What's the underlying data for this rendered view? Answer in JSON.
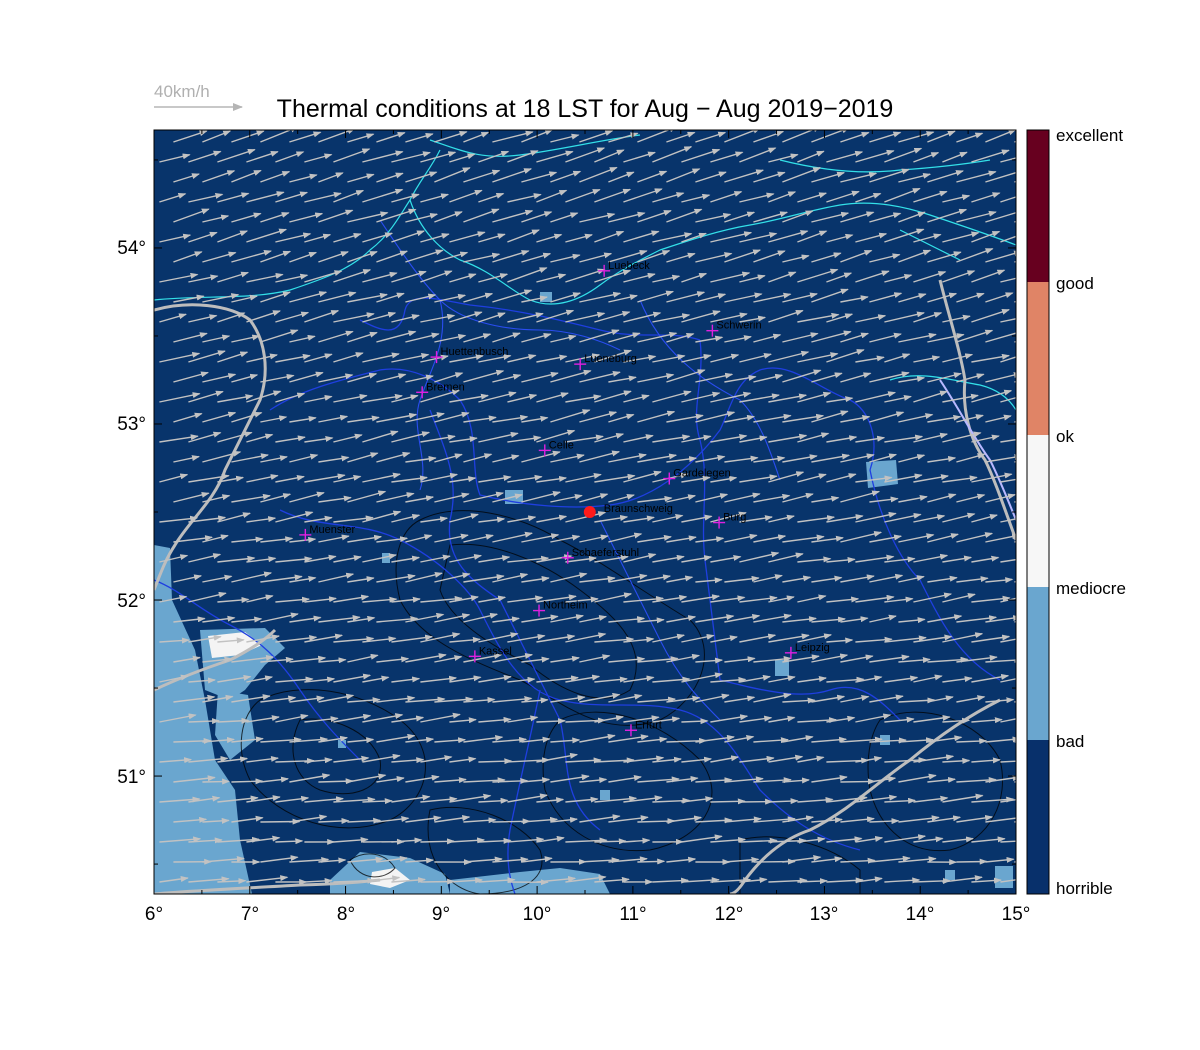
{
  "title": "Thermal conditions at 18 LST for Aug − Aug  2019−2019",
  "wind_reference": {
    "label": "40km/h"
  },
  "lon_ticks": [
    "6°",
    "7°",
    "8°",
    "9°",
    "10°",
    "11°",
    "12°",
    "13°",
    "14°",
    "15°"
  ],
  "lat_ticks": [
    "51°",
    "52°",
    "53°",
    "54°"
  ],
  "colorbar": {
    "labels": [
      "excellent",
      "good",
      "ok",
      "mediocre",
      "bad",
      "horrible"
    ],
    "colors": [
      "#67001f",
      "#e08466",
      "#f7f7f7",
      "#f2f2f2",
      "#6aa6cf",
      "#08306b"
    ]
  },
  "map": {
    "background_color": "#08346b",
    "lon_range": [
      6,
      15
    ],
    "lat_range": [
      50.33,
      54.67
    ],
    "cities": [
      {
        "name": "Luebeck",
        "lon": 10.7,
        "lat": 53.87
      },
      {
        "name": "Schwerin",
        "lon": 11.83,
        "lat": 53.53
      },
      {
        "name": "Huettenbusch",
        "lon": 8.95,
        "lat": 53.38
      },
      {
        "name": "Lueneburg",
        "lon": 10.45,
        "lat": 53.34
      },
      {
        "name": "Bremen",
        "lon": 8.8,
        "lat": 53.18
      },
      {
        "name": "Celle",
        "lon": 10.08,
        "lat": 52.85
      },
      {
        "name": "Gardelegen",
        "lon": 11.38,
        "lat": 52.69
      },
      {
        "name": "Burg",
        "lon": 11.9,
        "lat": 52.44
      },
      {
        "name": "Muenster",
        "lon": 7.58,
        "lat": 52.37
      },
      {
        "name": "Schaeferstuhl",
        "lon": 10.32,
        "lat": 52.24
      },
      {
        "name": "Northeim",
        "lon": 10.02,
        "lat": 51.94
      },
      {
        "name": "Kassel",
        "lon": 9.35,
        "lat": 51.68
      },
      {
        "name": "Leipzig",
        "lon": 12.65,
        "lat": 51.7
      },
      {
        "name": "Erfurt",
        "lon": 10.98,
        "lat": 51.26
      }
    ],
    "highlight": {
      "name": "Braunschweig",
      "lon": 10.55,
      "lat": 52.5
    }
  }
}
